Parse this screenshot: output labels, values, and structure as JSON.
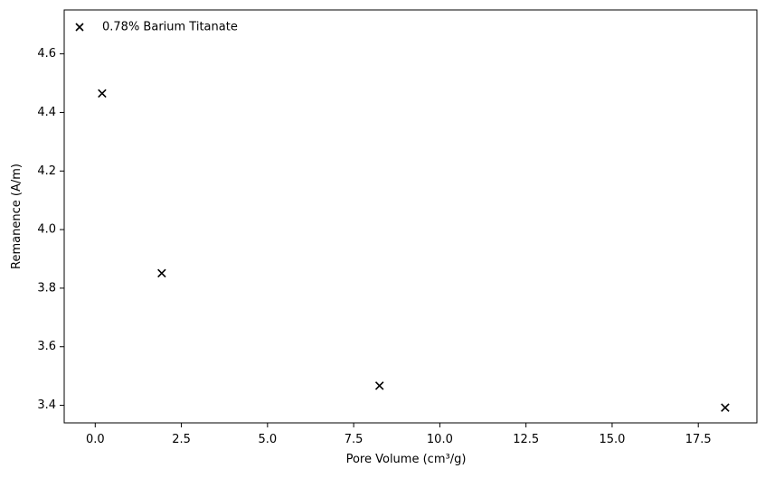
{
  "chart_data": {
    "type": "scatter",
    "title": "",
    "xlabel": "Pore Volume (cm³/g)",
    "ylabel": "Remanence (A/m)",
    "xlim": [
      -0.9,
      19.2
    ],
    "ylim": [
      3.34,
      4.75
    ],
    "xticks": [
      0.0,
      2.5,
      5.0,
      7.5,
      10.0,
      12.5,
      15.0,
      17.5
    ],
    "xtick_labels": [
      "0.0",
      "2.5",
      "5.0",
      "7.5",
      "10.0",
      "12.5",
      "15.0",
      "17.5"
    ],
    "yticks": [
      3.4,
      3.6,
      3.8,
      4.0,
      4.2,
      4.4,
      4.6
    ],
    "ytick_labels": [
      "3.4",
      "3.6",
      "3.8",
      "4.0",
      "4.2",
      "4.4",
      "4.6"
    ],
    "grid": false,
    "legend": {
      "position": "top-left",
      "entries": [
        {
          "label": "0.78% Barium Titanate",
          "marker": "x"
        }
      ]
    },
    "series": [
      {
        "name": "0.78% Barium Titanate",
        "marker": "x",
        "color": "#000000",
        "x": [
          0.2,
          1.93,
          8.25,
          18.28
        ],
        "y": [
          4.465,
          3.851,
          3.467,
          3.392
        ]
      }
    ]
  }
}
